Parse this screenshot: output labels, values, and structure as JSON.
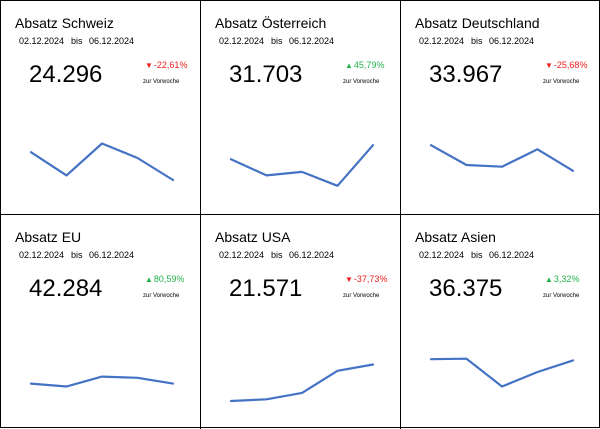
{
  "cards": [
    {
      "title": "Absatz Schweiz",
      "date_from": "02.12.2024",
      "bis": "bis",
      "date_to": "06.12.2024",
      "value": "24.296",
      "direction": "down",
      "arrow": "▼",
      "change": "-22,61%",
      "change_ref": "zur Vorwoche",
      "trend": [
        0.6,
        0.2,
        0.75,
        0.5,
        0.12
      ]
    },
    {
      "title": "Absatz Österreich",
      "date_from": "02.12.2024",
      "bis": "bis",
      "date_to": "06.12.2024",
      "value": "31.703",
      "direction": "up",
      "arrow": "▲",
      "change": "45,79%",
      "change_ref": "zur Vorwoche",
      "trend": [
        0.48,
        0.2,
        0.26,
        0.02,
        0.72
      ]
    },
    {
      "title": "Absatz Deutschland",
      "date_from": "02.12.2024",
      "bis": "bis",
      "date_to": "06.12.2024",
      "value": "33.967",
      "direction": "down",
      "arrow": "▼",
      "change": "-25,68%",
      "change_ref": "zur Vorwoche",
      "trend": [
        0.72,
        0.38,
        0.35,
        0.65,
        0.28
      ]
    },
    {
      "title": "Absatz EU",
      "date_from": "02.12.2024",
      "bis": "bis",
      "date_to": "06.12.2024",
      "value": "42.284",
      "direction": "up",
      "arrow": "▲",
      "change": "80,59%",
      "change_ref": "zur Vorwoche",
      "trend": [
        0.3,
        0.25,
        0.42,
        0.4,
        0.3
      ]
    },
    {
      "title": "Absatz USA",
      "date_from": "02.12.2024",
      "bis": "bis",
      "date_to": "06.12.2024",
      "value": "21.571",
      "direction": "down",
      "arrow": "▼",
      "change": "-37,73%",
      "change_ref": "zur Vorwoche",
      "trend": [
        0.0,
        0.03,
        0.14,
        0.52,
        0.63
      ]
    },
    {
      "title": "Absatz Asien",
      "date_from": "02.12.2024",
      "bis": "bis",
      "date_to": "06.12.2024",
      "value": "36.375",
      "direction": "up",
      "arrow": "▲",
      "change": "3,32%",
      "change_ref": "zur Vorwoche",
      "trend": [
        0.72,
        0.73,
        0.25,
        0.5,
        0.7
      ]
    }
  ],
  "colors": {
    "line": "#4472c4",
    "up": "#22b14c",
    "down": "#ee1c1c",
    "border": "#000000"
  }
}
